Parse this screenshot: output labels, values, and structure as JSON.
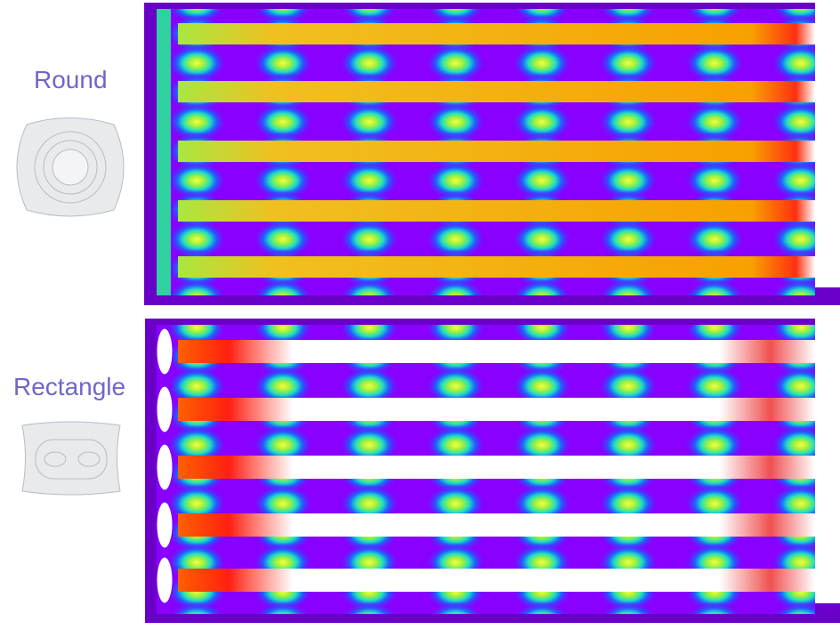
{
  "panels": [
    {
      "label": "Round"
    },
    {
      "label": "Rectangle"
    }
  ]
}
